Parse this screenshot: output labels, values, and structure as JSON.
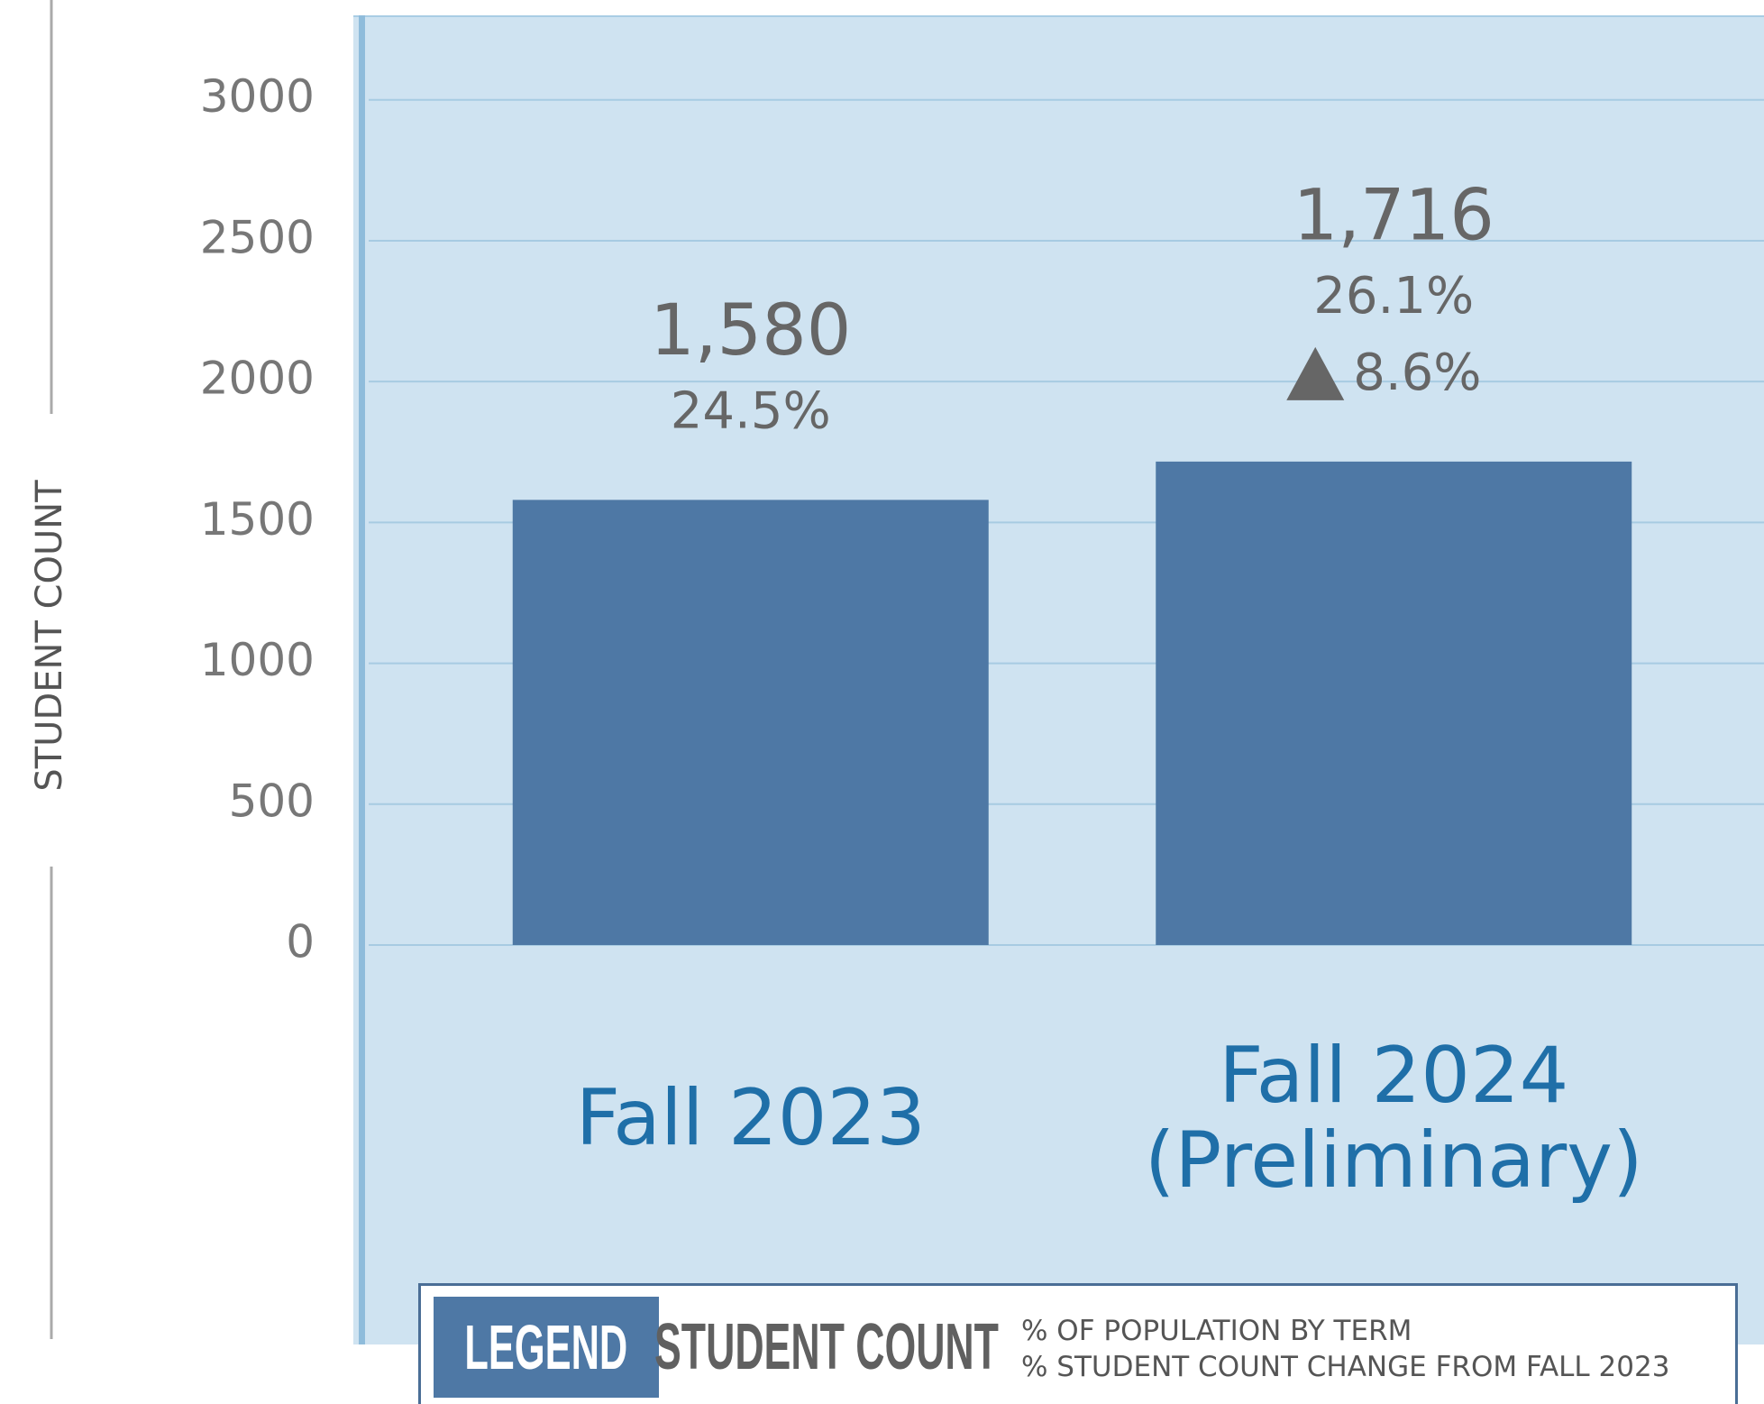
{
  "chart_data": {
    "type": "bar",
    "y_axis_label": "STUDENT COUNT",
    "categories": [
      "Fall 2023",
      "Fall 2024 (Preliminary)"
    ],
    "series": [
      {
        "name": "STUDENT COUNT",
        "color": "#4e78a5",
        "values": [
          1580,
          1716
        ],
        "value_labels": [
          "1,580",
          "1,716"
        ]
      }
    ],
    "population_share": {
      "name": "% OF POPULATION BY TERM",
      "values": [
        24.5,
        26.1
      ],
      "value_labels": [
        "24.5%",
        "26.1%"
      ]
    },
    "count_change": {
      "name": "% STUDENT COUNT CHANGE FROM FALL 2023",
      "values": [
        null,
        8.6
      ],
      "value_labels": [
        null,
        "8.6%"
      ]
    },
    "legend_title": "LEGEND",
    "ylim": [
      0,
      3300
    ],
    "yticks": [
      0,
      500,
      1000,
      1500,
      2000,
      2500,
      3000
    ],
    "grid": true
  }
}
